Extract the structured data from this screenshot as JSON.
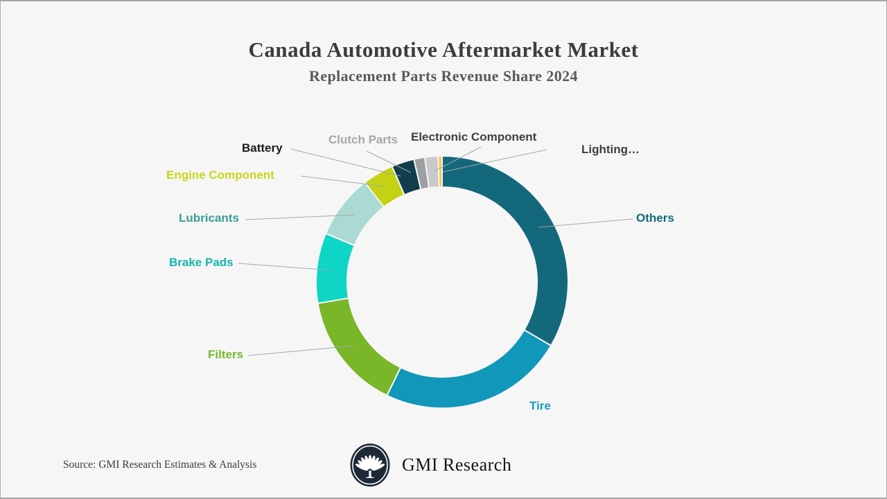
{
  "header": {
    "title": "Canada Automotive Aftermarket Market",
    "subtitle": "Replacement Parts Revenue Share 2024"
  },
  "chart_data": {
    "type": "pie",
    "subtype": "donut",
    "title": "Canada Automotive Aftermarket Market",
    "subtitle": "Replacement Parts Revenue Share 2024",
    "direction": "clockwise",
    "start_angle_deg": 0,
    "values_are_estimated_from_arc_angles": true,
    "unit": "% revenue share",
    "legend_position": "callout-labels",
    "segments": [
      {
        "id": "others",
        "label": "Others",
        "value": 33.4,
        "color": "#14687C",
        "label_color": "#14697E"
      },
      {
        "id": "tire",
        "label": "Tire",
        "value": 23.8,
        "color": "#1097BA",
        "label_color": "#189BC2"
      },
      {
        "id": "filters",
        "label": "Filters",
        "value": 15.1,
        "color": "#7AB728",
        "label_color": "#76B82A"
      },
      {
        "id": "brake_pads",
        "label": "Brake Pads",
        "value": 9.0,
        "color": "#0ED5C5",
        "label_color": "#14B5AB"
      },
      {
        "id": "lubricants",
        "label": "Lubricants",
        "value": 8.2,
        "color": "#ABDAD3",
        "label_color": "#3A9E92"
      },
      {
        "id": "engine_component",
        "label": "Engine Component",
        "value": 4.0,
        "color": "#C3D313",
        "label_color": "#C6D818"
      },
      {
        "id": "battery",
        "label": "Battery",
        "value": 2.9,
        "color": "#113E4F",
        "label_color": "#1A1A1A"
      },
      {
        "id": "clutch_parts",
        "label": "Clutch Parts",
        "value": 1.4,
        "color": "#9DA0A2",
        "label_color": "#A6A6A6"
      },
      {
        "id": "electronic_component",
        "label": "Electronic Component",
        "value": 1.7,
        "color": "#C9C9CA",
        "label_color": "#3F3F3F"
      },
      {
        "id": "lighting",
        "label": "Lighting…",
        "value": 0.5,
        "color": "#F7C64F",
        "label_color": "#3F3F3F"
      }
    ]
  },
  "footer": {
    "source": "Source: GMI Research Estimates & Analysis",
    "brand_name": "GMI Research",
    "logo_icon": "gmi-palm-tree-logo"
  },
  "colors": {
    "background": "#F6F6F7",
    "border": "#ADADAD",
    "title": "#3C3C3C",
    "subtitle": "#5A5A5A",
    "leader_line": "#A3A7A9",
    "logo_fill": "#1D2A36"
  }
}
